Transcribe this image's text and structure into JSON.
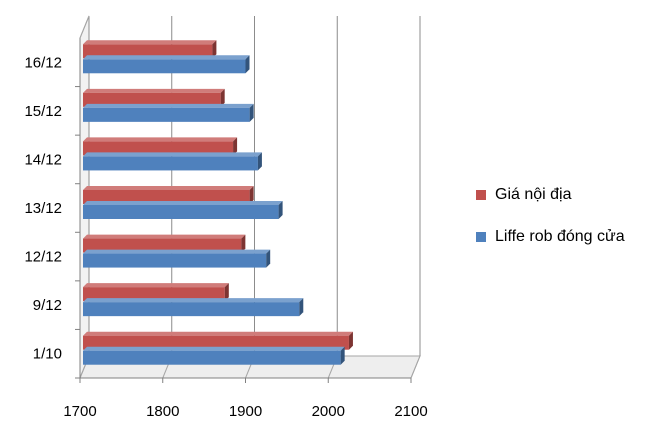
{
  "chart_data": {
    "type": "bar",
    "orientation": "horizontal",
    "style": "3d-clustered",
    "categories": [
      "1/10",
      "9/12",
      "12/12",
      "13/12",
      "14/12",
      "15/12",
      "16/12"
    ],
    "series": [
      {
        "name": "Giá nội địa",
        "color": "#c0504d",
        "values": [
          2025,
          1875,
          1895,
          1905,
          1885,
          1870,
          1860
        ]
      },
      {
        "name": "Liffe rob đóng cửa",
        "color": "#4f81bd",
        "values": [
          2015,
          1965,
          1925,
          1940,
          1915,
          1905,
          1900
        ]
      }
    ],
    "xlim": [
      1700,
      2100
    ],
    "xticks": [
      "1700",
      "1800",
      "1900",
      "2000",
      "2100"
    ],
    "xlabel": "",
    "ylabel": "",
    "title": "",
    "grid": true,
    "legend_position": "right"
  }
}
